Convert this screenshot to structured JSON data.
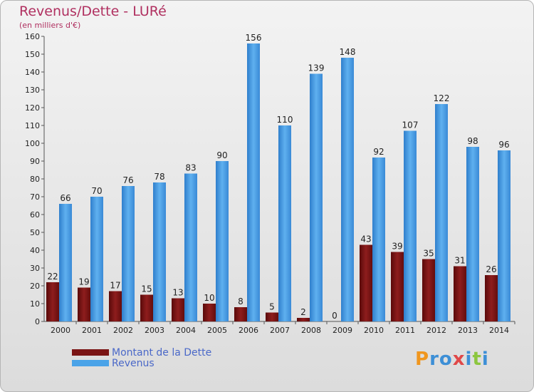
{
  "header": {
    "title": "Revenus/Dette - LURé",
    "subtitle": "(en milliers d'€)"
  },
  "colors": {
    "dette": "#7a1414",
    "revenus": "#4aa3e8",
    "title": "#b03060",
    "legend_text": "#4a68c8"
  },
  "legend": {
    "items": [
      {
        "label": "Montant de la Dette",
        "color": "#7a1414"
      },
      {
        "label": "Revenus",
        "color": "#4aa3e8"
      }
    ]
  },
  "logo": {
    "text": "Proxiti",
    "letters": [
      {
        "ch": "P",
        "color": "#f0961e"
      },
      {
        "ch": "r",
        "color": "#3d8fd6"
      },
      {
        "ch": "o",
        "color": "#3d8fd6"
      },
      {
        "ch": "x",
        "color": "#e04848"
      },
      {
        "ch": "i",
        "color": "#3d8fd6"
      },
      {
        "ch": "t",
        "color": "#8cc63f"
      },
      {
        "ch": "i",
        "color": "#3d8fd6"
      }
    ]
  },
  "chart_data": {
    "type": "bar",
    "categories": [
      "2000",
      "2001",
      "2002",
      "2003",
      "2004",
      "2005",
      "2006",
      "2007",
      "2008",
      "2009",
      "2010",
      "2011",
      "2012",
      "2013",
      "2014"
    ],
    "series": [
      {
        "name": "Montant de la Dette",
        "values": [
          22,
          19,
          17,
          15,
          13,
          10,
          8,
          5,
          2,
          0,
          43,
          39,
          35,
          31,
          26
        ]
      },
      {
        "name": "Revenus",
        "values": [
          66,
          70,
          76,
          78,
          83,
          90,
          156,
          110,
          139,
          148,
          92,
          107,
          122,
          98,
          96
        ]
      }
    ],
    "title": "Revenus/Dette - LURé",
    "ylabel": "(en milliers d'€)",
    "ylim": [
      0,
      160
    ],
    "yticks": [
      0,
      10,
      20,
      30,
      40,
      50,
      60,
      70,
      80,
      90,
      100,
      110,
      120,
      130,
      140,
      150,
      160
    ],
    "grid": false,
    "legend_position": "bottom-left"
  }
}
